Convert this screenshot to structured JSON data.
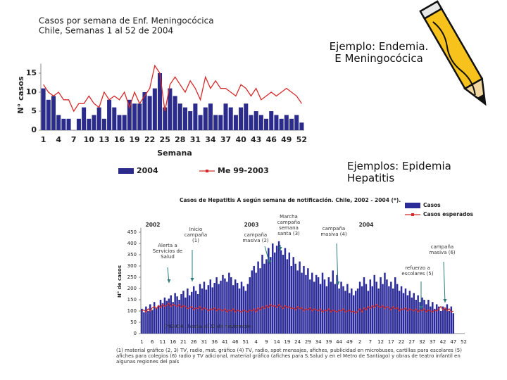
{
  "slide": {
    "endemia": "Ejemplo: Endemia.\nE Meningocócica",
    "epidemia": "Ejemplos: Epidemia\nHepatitis"
  },
  "chart_data": [
    {
      "type": "bar",
      "title": "Casos por semana de Enf. Meningocócica",
      "subtitle": "Chile,  Semanas 1 al 52 de 2004",
      "x_label": "Semana",
      "y_label": "N° casos",
      "categories": [
        1,
        null,
        null,
        4,
        null,
        null,
        7,
        null,
        null,
        10,
        null,
        null,
        13,
        null,
        null,
        16,
        null,
        null,
        19,
        null,
        null,
        22,
        null,
        null,
        25,
        null,
        null,
        28,
        null,
        null,
        31,
        null,
        null,
        34,
        null,
        null,
        37,
        null,
        null,
        40,
        null,
        null,
        43,
        null,
        null,
        46,
        null,
        null,
        49,
        null,
        null,
        52
      ],
      "ylim": [
        0,
        17.5
      ],
      "yticks": [
        0,
        5,
        10,
        15
      ],
      "grid": false,
      "series": [
        {
          "name": "2004",
          "type": "bar",
          "color": "#2b2b8c",
          "values": [
            11,
            8,
            9,
            4,
            3,
            3,
            0,
            3,
            6,
            3,
            4,
            6,
            3,
            8,
            6,
            4,
            4,
            8,
            7,
            7,
            10,
            9,
            11,
            15,
            6,
            11,
            9,
            7,
            6,
            5,
            7,
            4,
            6,
            7,
            4,
            4,
            7,
            6,
            4,
            6,
            7,
            4,
            5,
            4,
            3,
            5,
            4,
            3,
            4,
            3,
            4,
            2
          ]
        },
        {
          "name": "Me 99-2003",
          "type": "line",
          "color": "#d42a2a",
          "values": [
            12,
            10,
            9,
            10,
            8,
            8,
            5,
            7,
            7,
            9,
            7,
            6,
            10,
            8,
            9,
            8,
            10,
            6,
            10,
            7,
            9,
            11,
            17,
            15,
            5,
            12,
            14,
            12,
            10,
            13,
            11,
            8,
            14,
            11,
            13,
            11,
            11,
            10,
            9,
            12,
            11,
            9,
            11,
            8,
            9,
            10,
            9,
            10,
            11,
            10,
            9,
            7
          ]
        }
      ]
    },
    {
      "type": "bar",
      "title": "Casos de Hepatitis A según semana de notificación. Chile, 2002 - 2004 (*).",
      "y_label": "N° de casos",
      "categories": [
        1,
        null,
        null,
        null,
        null,
        6,
        null,
        null,
        null,
        null,
        11,
        null,
        null,
        null,
        null,
        16,
        null,
        null,
        null,
        null,
        21,
        null,
        null,
        null,
        null,
        26,
        null,
        null,
        null,
        null,
        31,
        null,
        null,
        null,
        null,
        36,
        null,
        null,
        null,
        null,
        41,
        null,
        null,
        null,
        null,
        46,
        null,
        null,
        null,
        null,
        51,
        null,
        null,
        null,
        null,
        4,
        null,
        null,
        null,
        null,
        9,
        null,
        null,
        null,
        null,
        14,
        null,
        null,
        null,
        null,
        19,
        null,
        null,
        null,
        null,
        24,
        null,
        null,
        null,
        null,
        29,
        null,
        null,
        null,
        null,
        34,
        null,
        null,
        null,
        null,
        39,
        null,
        null,
        null,
        null,
        44,
        null,
        null,
        null,
        null,
        49,
        null,
        null,
        null,
        null,
        2,
        null,
        null,
        null,
        null,
        7,
        null,
        null,
        null,
        null,
        12,
        null,
        null,
        null,
        null,
        17,
        null,
        null,
        null,
        null,
        22,
        null,
        null,
        null,
        null,
        27,
        null,
        null,
        null,
        null,
        32,
        null,
        null,
        null,
        null,
        37,
        null,
        null,
        null,
        null,
        42,
        null,
        null,
        null,
        null,
        47,
        null,
        null,
        null,
        null,
        52
      ],
      "ylim": [
        0,
        470
      ],
      "yticks": [
        0,
        50,
        100,
        150,
        200,
        250,
        300,
        350,
        400,
        450
      ],
      "grid": false,
      "series": [
        {
          "name": "Casos",
          "type": "bar",
          "color": "#2b2b9a",
          "values": [
            110,
            95,
            120,
            100,
            130,
            105,
            140,
            115,
            125,
            150,
            135,
            160,
            145,
            155,
            170,
            140,
            180,
            165,
            150,
            175,
            190,
            160,
            200,
            170,
            185,
            210,
            190,
            175,
            220,
            200,
            230,
            195,
            215,
            240,
            205,
            225,
            250,
            220,
            235,
            260,
            245,
            230,
            270,
            250,
            215,
            240,
            225,
            200,
            230,
            210,
            190,
            220,
            250,
            280,
            300,
            270,
            320,
            290,
            350,
            310,
            330,
            380,
            340,
            400,
            360,
            390,
            410,
            370,
            350,
            380,
            330,
            360,
            300,
            340,
            310,
            280,
            320,
            270,
            300,
            260,
            290,
            240,
            270,
            230,
            260,
            250,
            220,
            270,
            240,
            210,
            250,
            230,
            280,
            220,
            260,
            200,
            230,
            210,
            190,
            220,
            180,
            200,
            170,
            190,
            200,
            230,
            210,
            250,
            220,
            190,
            240,
            210,
            260,
            230,
            200,
            250,
            220,
            270,
            240,
            210,
            230,
            200,
            250,
            220,
            190,
            210,
            180,
            200,
            170,
            190,
            160,
            180,
            150,
            170,
            140,
            160,
            150,
            130,
            150,
            120,
            140,
            110,
            130,
            120,
            100,
            120,
            110,
            130,
            100,
            120,
            90,
            null,
            null,
            null,
            null,
            null
          ]
        },
        {
          "name": "Casos esperados",
          "type": "line",
          "color": "#d42a2a",
          "values": [
            100,
            105,
            95,
            110,
            100,
            115,
            120,
            110,
            125,
            115,
            130,
            120,
            125,
            135,
            120,
            130,
            125,
            120,
            130,
            115,
            125,
            120,
            110,
            115,
            120,
            105,
            115,
            110,
            120,
            105,
            115,
            110,
            100,
            110,
            105,
            115,
            100,
            110,
            105,
            100,
            110,
            95,
            105,
            100,
            110,
            95,
            105,
            100,
            95,
            105,
            100,
            95,
            105,
            100,
            110,
            95,
            115,
            105,
            120,
            110,
            125,
            115,
            130,
            120,
            125,
            115,
            130,
            120,
            110,
            125,
            115,
            120,
            110,
            115,
            105,
            120,
            110,
            115,
            100,
            110,
            105,
            115,
            100,
            110,
            105,
            100,
            110,
            95,
            105,
            100,
            110,
            95,
            105,
            100,
            95,
            105,
            100,
            110,
            95,
            100,
            105,
            95,
            100,
            90,
            100,
            110,
            95,
            115,
            105,
            120,
            110,
            125,
            115,
            130,
            120,
            115,
            125,
            110,
            120,
            115,
            105,
            120,
            110,
            115,
            100,
            110,
            105,
            115,
            100,
            110,
            105,
            100,
            110,
            95,
            105,
            100,
            110,
            95,
            105,
            100,
            95,
            105,
            100,
            110,
            120,
            105,
            115,
            100,
            110,
            95,
            100,
            null,
            null,
            null,
            null,
            null
          ]
        }
      ],
      "annotations": [
        "2002",
        "2003",
        "2004",
        "Alerta a\nServicios de\nSalud",
        "Inicio\ncampaña\n(1)",
        "campaña\nmasiva (2)",
        "Marcha\ncampaña\nsemana\nsanta (3)",
        "campaña\nmasiva (4)",
        "campaña\nmasiva (6)",
        "refuerzo a\nescolares (5)",
        "(*)2004 : hasta el 20 de noviembre",
        "(1) material gráfico  (2, 3) TV, radio, mat. gráfico  (4) TV, radio, spot mensajes, afiches, publicidad en microbuses, cartillas para escolares  (5) afiches para colegios  (6) radio y TV adicional, material gráfico (afiches para S.Salud y en el Metro de Santiago) y obras de teatro infantil en algunas regiones del país"
      ]
    }
  ]
}
